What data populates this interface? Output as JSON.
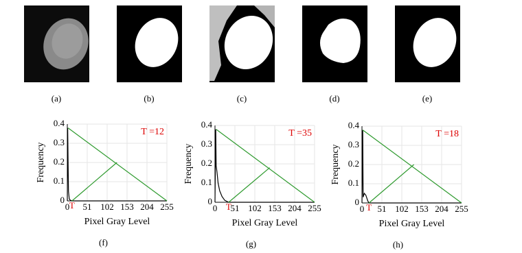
{
  "image_labels": [
    "(a)",
    "(b)",
    "(c)",
    "(d)",
    "(e)"
  ],
  "chart_data": [
    {
      "type": "line",
      "caption": "(f)",
      "annotation": "T =12",
      "threshold": 12,
      "threshold_label": "T",
      "xlabel": "Pixel Gray Level",
      "ylabel": "Frequency",
      "xlim": [
        0,
        255
      ],
      "ylim": [
        0,
        0.4
      ],
      "xticks": [
        0,
        51,
        102,
        153,
        204,
        255
      ],
      "yticks": [
        0,
        0.1,
        0.2,
        0.3,
        0.4
      ],
      "grid": true,
      "series": [
        {
          "color": "#000000",
          "x": [
            0,
            1,
            2,
            3,
            5,
            8,
            12,
            40,
            128,
            255
          ],
          "values": [
            0,
            0.38,
            0.2,
            0.05,
            0.01,
            0.003,
            0,
            0,
            0,
            0
          ]
        },
        {
          "color": "#2e9a2e",
          "x": [
            2,
            255
          ],
          "values": [
            0.38,
            0
          ]
        },
        {
          "color": "#2e9a2e",
          "x": [
            12,
            127
          ],
          "values": [
            0,
            0.2
          ]
        }
      ]
    },
    {
      "type": "line",
      "caption": "(g)",
      "annotation": "T =35",
      "threshold": 35,
      "threshold_label": "T",
      "xlabel": "Pixel Gray Level",
      "ylabel": "Frequency",
      "xlim": [
        0,
        255
      ],
      "ylim": [
        0,
        0.4
      ],
      "xticks": [
        0,
        51,
        102,
        153,
        204,
        255
      ],
      "yticks": [
        0,
        0.1,
        0.2,
        0.3,
        0.4
      ],
      "grid": true,
      "series": [
        {
          "color": "#000000",
          "x": [
            0,
            2,
            3,
            5,
            8,
            12,
            18,
            25,
            35,
            50,
            255
          ],
          "values": [
            0,
            0.38,
            0.19,
            0.16,
            0.1,
            0.06,
            0.03,
            0.01,
            0,
            0,
            0
          ]
        },
        {
          "color": "#2e9a2e",
          "x": [
            3,
            255
          ],
          "values": [
            0.38,
            0
          ]
        },
        {
          "color": "#2e9a2e",
          "x": [
            35,
            140
          ],
          "values": [
            0,
            0.18
          ]
        }
      ]
    },
    {
      "type": "line",
      "caption": "(h)",
      "annotation": "T =18",
      "threshold": 18,
      "threshold_label": "T",
      "xlabel": "Pixel Gray Level",
      "ylabel": "Frequency",
      "xlim": [
        0,
        255
      ],
      "ylim": [
        0,
        0.4
      ],
      "xticks": [
        0,
        51,
        102,
        153,
        204,
        255
      ],
      "yticks": [
        0,
        0.1,
        0.2,
        0.3,
        0.4
      ],
      "grid": true,
      "series": [
        {
          "color": "#000000",
          "x": [
            0,
            2,
            3,
            6,
            10,
            15,
            18,
            30,
            255
          ],
          "values": [
            0,
            0.38,
            0.03,
            0.05,
            0.04,
            0.01,
            0,
            0,
            0
          ]
        },
        {
          "color": "#2e9a2e",
          "x": [
            2,
            255
          ],
          "values": [
            0.38,
            0
          ]
        },
        {
          "color": "#2e9a2e",
          "x": [
            18,
            133
          ],
          "values": [
            0,
            0.2
          ]
        }
      ]
    }
  ]
}
